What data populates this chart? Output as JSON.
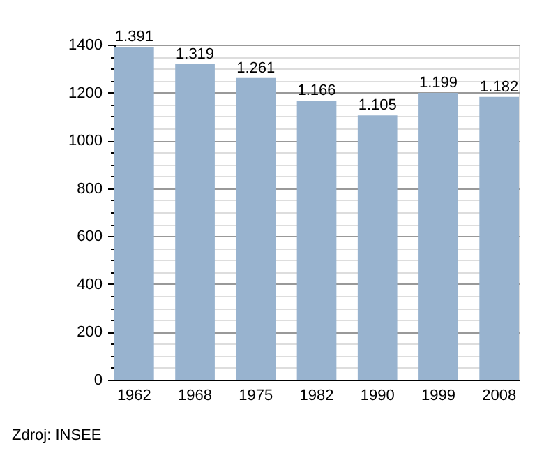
{
  "chart_data": {
    "type": "bar",
    "categories": [
      "1962",
      "1968",
      "1975",
      "1982",
      "1990",
      "1999",
      "2008"
    ],
    "values": [
      1391,
      1319,
      1261,
      1166,
      1105,
      1199,
      1182
    ],
    "value_labels": [
      "1.391",
      "1.319",
      "1.261",
      "1.166",
      "1.105",
      "1.199",
      "1.182"
    ],
    "color": "#98b3cf",
    "ylim": [
      0,
      1400
    ],
    "yticks": [
      0,
      {
        "value": 50,
        "label": null
      },
      {
        "value": 100,
        "label": null
      },
      {
        "value": 150,
        "label": null
      },
      200,
      {
        "value": 250,
        "label": null
      },
      {
        "value": 300,
        "label": null
      },
      {
        "value": 350,
        "label": null
      },
      400,
      {
        "value": 450,
        "label": null
      },
      {
        "value": 500,
        "label": null
      },
      {
        "value": 550,
        "label": null
      },
      600,
      {
        "value": 650,
        "label": null
      },
      {
        "value": 700,
        "label": null
      },
      {
        "value": 750,
        "label": null
      },
      800,
      {
        "value": 850,
        "label": null
      },
      {
        "value": 900,
        "label": null
      },
      {
        "value": 950,
        "label": null
      },
      1000,
      {
        "value": 1050,
        "label": null
      },
      {
        "value": 1100,
        "label": null
      },
      {
        "value": 1150,
        "label": null
      },
      1200,
      {
        "value": 1250,
        "label": null
      },
      {
        "value": 1300,
        "label": null
      },
      {
        "value": 1350,
        "label": null
      },
      1400
    ],
    "grid": "y",
    "annotations": [
      "Zdroj: INSEE"
    ]
  }
}
